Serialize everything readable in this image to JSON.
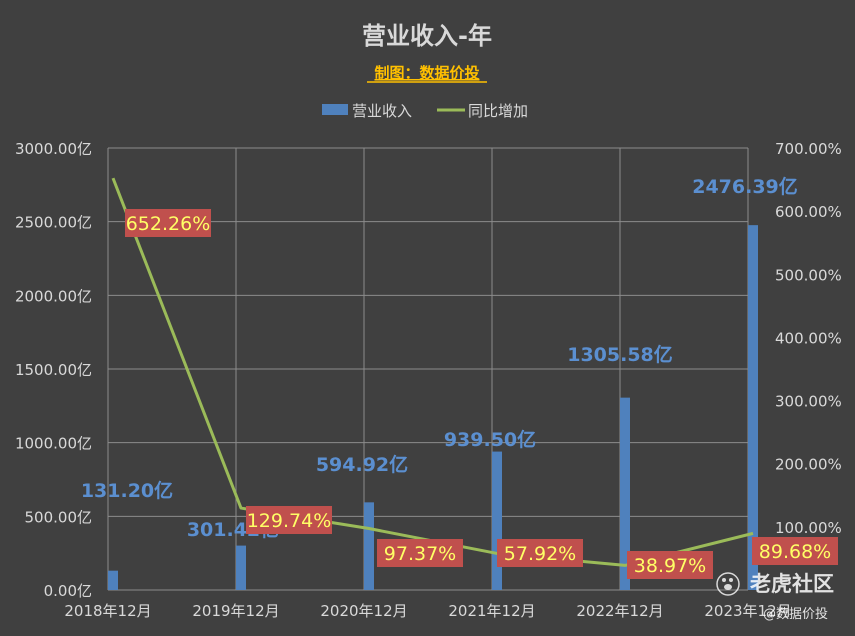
{
  "chart_data": {
    "type": "bar",
    "title": "营业收入-年",
    "subtitle": "制图：数据价投",
    "categories": [
      "2018年12月",
      "2019年12月",
      "2020年12月",
      "2021年12月",
      "2022年12月",
      "2023年12月"
    ],
    "series": [
      {
        "name": "营业收入",
        "type": "bar",
        "axis": "left",
        "color": "#4f81bd",
        "values": [
          131.2,
          301.42,
          594.92,
          939.5,
          1305.58,
          2476.39
        ],
        "labels": [
          "131.20亿",
          "301.42亿",
          "594.92亿",
          "939.50亿",
          "1305.58亿",
          "2476.39亿"
        ]
      },
      {
        "name": "同比增加",
        "type": "line",
        "axis": "right",
        "color": "#9bbb59",
        "values": [
          652.26,
          129.74,
          97.37,
          57.92,
          38.97,
          89.68
        ],
        "labels": [
          "652.26%",
          "129.74%",
          "97.37%",
          "57.92%",
          "38.97%",
          "89.68%"
        ]
      }
    ],
    "y_left": {
      "ylim": [
        0,
        3000
      ],
      "ticks": [
        "0.00亿",
        "500.00亿",
        "1000.00亿",
        "1500.00亿",
        "2000.00亿",
        "2500.00亿",
        "3000.00亿"
      ]
    },
    "y_right": {
      "ylim": [
        0,
        700
      ],
      "ticks": [
        "100.00%",
        "200.00%",
        "300.00%",
        "400.00%",
        "500.00%",
        "600.00%",
        "700.00%"
      ]
    },
    "grid": true,
    "legend_position": "top-center",
    "pct_label_bg": "#c0504d",
    "pct_label_color": "#ffff66",
    "bar_label_color": "#5b8fd0"
  },
  "watermark": {
    "brand": "老虎社区",
    "handle": "@数据价投",
    "icon": "tiger-paw-icon"
  }
}
